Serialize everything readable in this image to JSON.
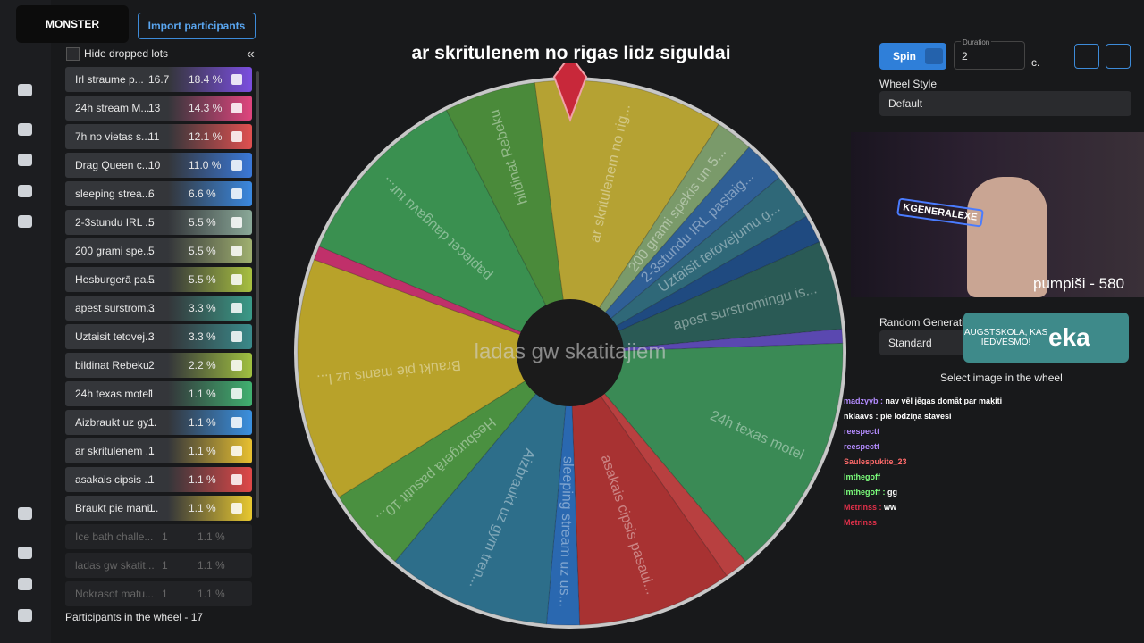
{
  "header": {
    "import_button": "Import participants",
    "hide_dropped": "Hide dropped lots"
  },
  "lots": [
    {
      "name": "Irl straume p...",
      "amount": 16.7,
      "percent": "18.4 %"
    },
    {
      "name": "24h stream M...",
      "amount": 13,
      "percent": "14.3 %"
    },
    {
      "name": "7h no vietas s...",
      "amount": 11,
      "percent": "12.1 %"
    },
    {
      "name": "Drag Queen c...",
      "amount": 10,
      "percent": "11.0 %"
    },
    {
      "name": "sleeping strea...",
      "amount": 6,
      "percent": "6.6 %"
    },
    {
      "name": "2-3stundu IRL ...",
      "amount": 5,
      "percent": "5.5 %"
    },
    {
      "name": "200 grami spe...",
      "amount": 5,
      "percent": "5.5 %"
    },
    {
      "name": "Hesburgerā pa...",
      "amount": 5,
      "percent": "5.5 %"
    },
    {
      "name": "apest surstrom...",
      "amount": 3,
      "percent": "3.3 %"
    },
    {
      "name": "Uztaisit tetovej...",
      "amount": 3,
      "percent": "3.3 %"
    },
    {
      "name": "bildinat Rebeku",
      "amount": 2,
      "percent": "2.2 %"
    },
    {
      "name": "24h texas motel",
      "amount": 1,
      "percent": "1.1 %"
    },
    {
      "name": "Aizbraukt uz gy...",
      "amount": 1,
      "percent": "1.1 %"
    },
    {
      "name": "ar skritulenem ...",
      "amount": 1,
      "percent": "1.1 %"
    },
    {
      "name": "asakais cipsis ...",
      "amount": 1,
      "percent": "1.1 %"
    },
    {
      "name": "Braukt pie mani...",
      "amount": 1,
      "percent": "1.1 %"
    }
  ],
  "dropped_lots": [
    {
      "name": "Ice bath challe...",
      "amount": 1,
      "percent": "1.1 %"
    },
    {
      "name": "ladas gw skatit...",
      "amount": 1,
      "percent": "1.1 %"
    },
    {
      "name": "Nokrasot matu...",
      "amount": 1,
      "percent": "1.1 %"
    }
  ],
  "footer": "Participants in the wheel - 17",
  "wheel": {
    "title": "ar skritulenem no rigas lidz siguldai",
    "center": "ladas gw skatitajiem",
    "segments": [
      "ar skritulenem no rig...",
      "200 grami spekis un 5...",
      "2-3stundu IRL pastaig...",
      "Uztaisit tetovejumu g...",
      "apest surstromingu is...",
      "24h texas motel",
      "asakais cipsis pasaul...",
      "sleeping stream uz us...",
      "Aizbraukt uz gym tren...",
      "Hesburgerā pasutit 10...",
      "Braukt pie manis uz l...",
      "paplecet daugavu tur...",
      "bildinat Rebeku"
    ]
  },
  "controls": {
    "spin": "Spin",
    "duration_label": "Duration",
    "duration_value": "2",
    "duration_unit": "c.",
    "wheel_style_label": "Wheel Style",
    "wheel_style_value": "Default",
    "random_label": "Random Generatio",
    "random_value": "Standard",
    "select_image": "Select image in the wheel"
  },
  "overlay": {
    "counter": "pumpiši - 580",
    "banner": "AUGSTSKOLA, KAS IEDVESMO!",
    "banner_big": "eka",
    "logo": "MONSTER",
    "cam_sign": "KGENERALEXE"
  },
  "chat": [
    {
      "user": "madzyyb",
      "text": "nav vēl jēgas domāt par maķiti"
    },
    {
      "user": "nklaavs",
      "text": "pie lodziņa stavesi"
    },
    {
      "user": "reespectt"
    },
    {
      "user": "reespectt"
    },
    {
      "user": "Saulespukite_23"
    },
    {
      "user": "lmthegoff"
    },
    {
      "user": "lmthegoff",
      "text": "gg"
    },
    {
      "user": "Metrinss",
      "text": "ww"
    },
    {
      "user": "Metrinss"
    }
  ]
}
